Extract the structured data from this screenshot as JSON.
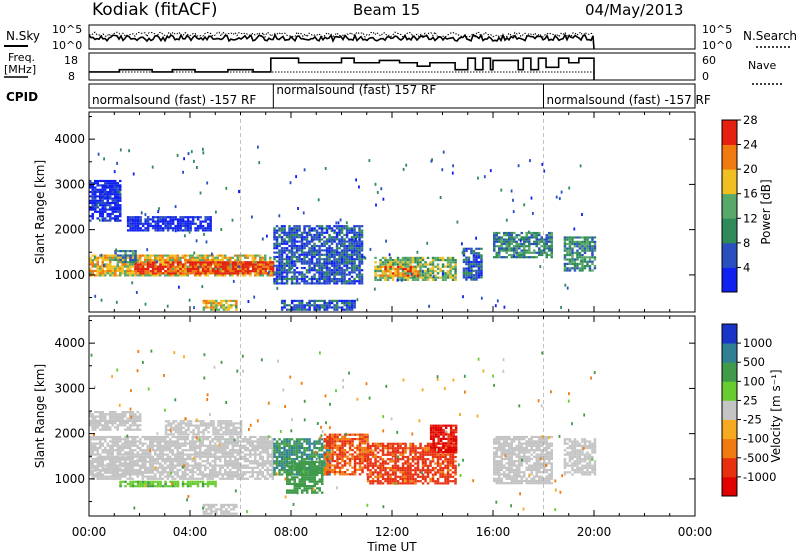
{
  "header": {
    "station": "Kodiak (fitACF)",
    "beam": "Beam 15",
    "date": "04/May/2013"
  },
  "scan_panel": {
    "left_label": "N.Sky",
    "right_label": "N.Search",
    "left_ticks": [
      "10^5",
      "10^0"
    ],
    "right_ticks": [
      "10^5",
      "10^0"
    ]
  },
  "freq_panel": {
    "left_label_line1": "Freq.",
    "left_label_line2": "[MHz]",
    "right_label": "Nave",
    "left_ticks": [
      "18",
      "8"
    ],
    "right_ticks": [
      "60",
      "0"
    ]
  },
  "cpid_panel": {
    "label": "CPID",
    "segments": [
      {
        "text": "normalsound (fast) -157 RF",
        "start_hr": 0,
        "end_hr": 7.3
      },
      {
        "text": "normalsound (fast) 157 RF",
        "start_hr": 7.3,
        "end_hr": 18
      },
      {
        "text": "normalsound (fast) -157 RF",
        "start_hr": 18,
        "end_hr": 24
      }
    ]
  },
  "chart_data": [
    {
      "type": "heatmap",
      "title": "",
      "xlabel": "",
      "ylabel": "Slant Range [km]",
      "xlim": [
        0,
        24
      ],
      "ylim": [
        180,
        4600
      ],
      "x_ticks": [
        0,
        4,
        8,
        12,
        16,
        20,
        24
      ],
      "y_ticks": [
        1000,
        2000,
        3000,
        4000
      ],
      "colorbar": {
        "label": "Power [dB]",
        "ticks": [
          "4",
          "8",
          "12",
          "16",
          "20",
          "24",
          "28"
        ],
        "colors": [
          "#1020f0",
          "#2a50c0",
          "#2f8a5a",
          "#58a86a",
          "#f0c020",
          "#f07a10",
          "#e52010"
        ]
      },
      "regions": [
        {
          "x": [
            0,
            7.3
          ],
          "y": [
            1000,
            1450
          ],
          "value": 20
        },
        {
          "x": [
            1.8,
            7.3
          ],
          "y": [
            1050,
            1300
          ],
          "value": 28
        },
        {
          "x": [
            1.0,
            1.8
          ],
          "y": [
            1300,
            1550
          ],
          "value": 12
        },
        {
          "x": [
            7.3,
            10.8
          ],
          "y": [
            800,
            2100
          ],
          "value": 8
        },
        {
          "x": [
            11.3,
            14.5
          ],
          "y": [
            900,
            1400
          ],
          "value": 16
        },
        {
          "x": [
            11.5,
            13.0
          ],
          "y": [
            1000,
            1200
          ],
          "value": 24
        },
        {
          "x": [
            14.8,
            15.5
          ],
          "y": [
            900,
            1600
          ],
          "value": 8
        },
        {
          "x": [
            16.0,
            18.3
          ],
          "y": [
            1400,
            1950
          ],
          "value": 12
        },
        {
          "x": [
            18.8,
            20.0
          ],
          "y": [
            1100,
            1850
          ],
          "value": 12
        },
        {
          "x": [
            1.5,
            4.8
          ],
          "y": [
            2000,
            2300
          ],
          "value": 4
        },
        {
          "x": [
            0,
            1.2
          ],
          "y": [
            2200,
            3100
          ],
          "value": 4
        },
        {
          "x": [
            4.5,
            5.8
          ],
          "y": [
            250,
            450
          ],
          "value": 20
        },
        {
          "x": [
            7.6,
            10.5
          ],
          "y": [
            250,
            450
          ],
          "value": 8
        }
      ]
    },
    {
      "type": "heatmap",
      "title": "",
      "xlabel": "Time UT",
      "ylabel": "Slant Range [km]",
      "xlim": [
        0,
        24
      ],
      "ylim": [
        180,
        4600
      ],
      "x_ticks": [
        0,
        4,
        8,
        12,
        16,
        20,
        24
      ],
      "x_tick_labels": [
        "00:00",
        "04:00",
        "08:00",
        "12:00",
        "16:00",
        "20:00",
        "00:00"
      ],
      "y_ticks": [
        1000,
        2000,
        3000,
        4000
      ],
      "colorbar": {
        "label": "Velocity [m s⁻¹]",
        "ticks": [
          "1000",
          "500",
          "100",
          "25",
          "-25",
          "-100",
          "-500",
          "-1000"
        ],
        "colors": [
          "#1a34c8",
          "#2f7f95",
          "#3f9a4a",
          "#68cc30",
          "#c4c4c4",
          "#f5aa20",
          "#f07a10",
          "#e83010",
          "#e00000"
        ]
      },
      "regions": [
        {
          "x": [
            0,
            7.3
          ],
          "y": [
            1000,
            1950
          ],
          "value": 0
        },
        {
          "x": [
            0,
            2.5
          ],
          "y": [
            1150,
            1500
          ],
          "value": 0
        },
        {
          "x": [
            1.2,
            5.0
          ],
          "y": [
            820,
            960
          ],
          "value": 50
        },
        {
          "x": [
            7.3,
            9.5
          ],
          "y": [
            1100,
            1900
          ],
          "value": 300
        },
        {
          "x": [
            7.8,
            9.2
          ],
          "y": [
            700,
            1400
          ],
          "value": 200
        },
        {
          "x": [
            9.3,
            11.0
          ],
          "y": [
            1100,
            2000
          ],
          "value": -300
        },
        {
          "x": [
            11.0,
            14.5
          ],
          "y": [
            900,
            1800
          ],
          "value": -400
        },
        {
          "x": [
            13.5,
            14.5
          ],
          "y": [
            1600,
            2200
          ],
          "value": -800
        },
        {
          "x": [
            16.0,
            18.3
          ],
          "y": [
            900,
            1950
          ],
          "value": 0
        },
        {
          "x": [
            18.8,
            20.0
          ],
          "y": [
            1100,
            1900
          ],
          "value": 0
        },
        {
          "x": [
            0,
            2.0
          ],
          "y": [
            2100,
            2500
          ],
          "value": 0
        },
        {
          "x": [
            3.0,
            6.0
          ],
          "y": [
            2000,
            2300
          ],
          "value": 0
        },
        {
          "x": [
            4.5,
            5.8
          ],
          "y": [
            250,
            450
          ],
          "value": 0
        }
      ]
    }
  ]
}
